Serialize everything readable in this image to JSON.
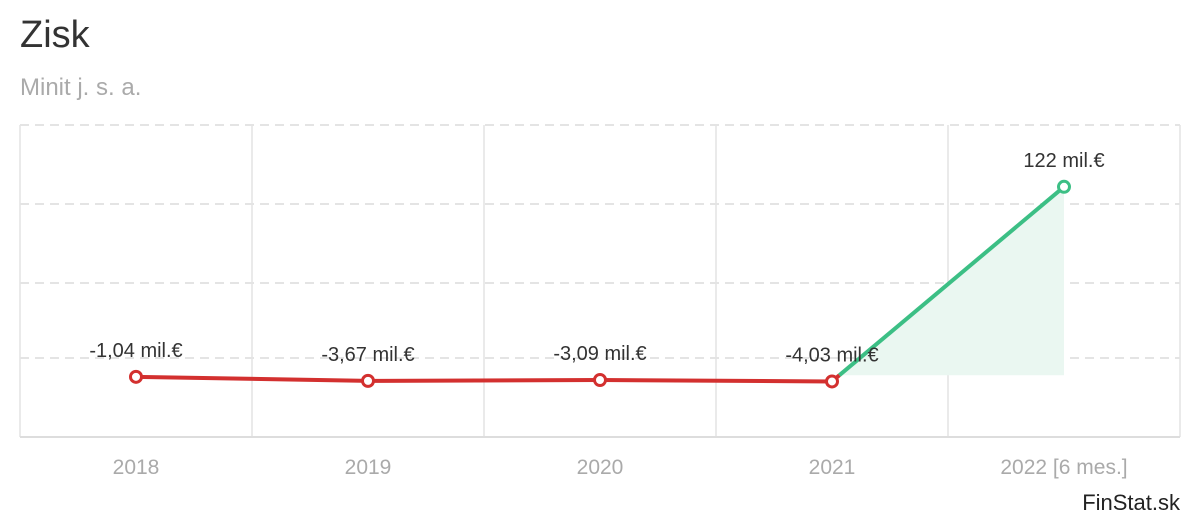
{
  "header": {
    "title": "Zisk",
    "subtitle": "Minit j. s. a."
  },
  "credit": "FinStat.sk",
  "colors": {
    "negative": "#d3302f",
    "positive": "#3cbf85",
    "positive_fill": "#eaf7f1",
    "grid": "#e4e4e4",
    "axis": "#dddddd"
  },
  "chart_data": {
    "type": "line",
    "categories": [
      "2018",
      "2019",
      "2020",
      "2021",
      "2022 [6 mes.]"
    ],
    "values": [
      -1.04,
      -3.67,
      -3.09,
      -4.03,
      122
    ],
    "data_labels": [
      "-1,04 mil.€",
      "-3,67 mil.€",
      "-3,09 mil.€",
      "-4,03 mil.€",
      "122 mil.€"
    ],
    "unit": "mil.€",
    "grid": true,
    "legend": "none"
  }
}
